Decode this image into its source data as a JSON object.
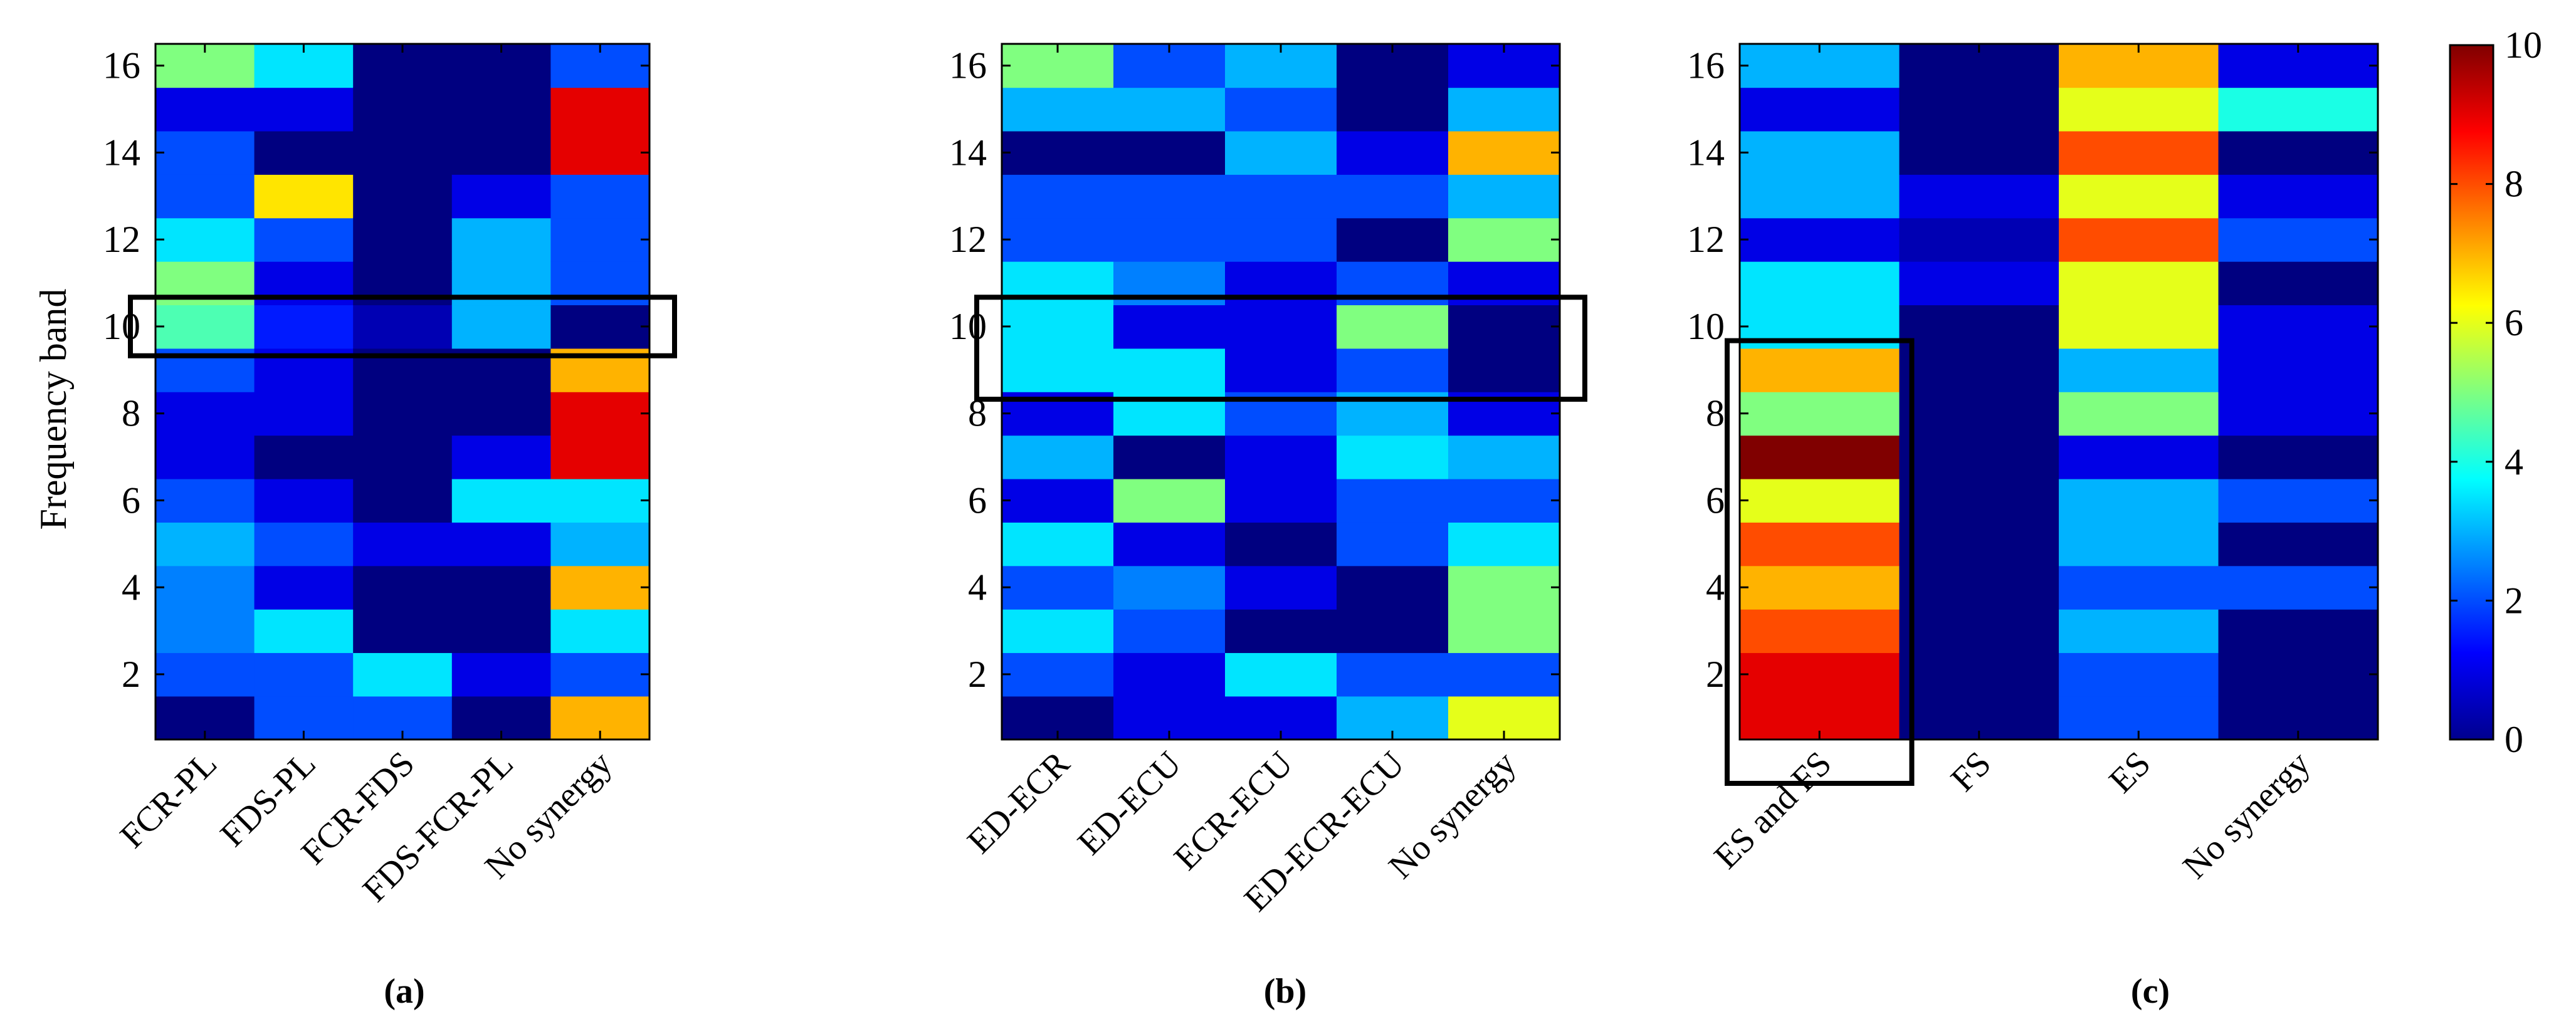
{
  "figure": {
    "ylabel": "Frequency band",
    "colorbar": {
      "min": 0,
      "max": 10,
      "ticks": [
        "0",
        "2",
        "4",
        "6",
        "8",
        "10"
      ],
      "colormap": "jet"
    }
  },
  "chart_data": [
    {
      "type": "heatmap",
      "panel_label": "(a)",
      "ylabel": "Frequency band",
      "y_range": [
        1,
        16
      ],
      "y_ticks": [
        "2",
        "4",
        "6",
        "8",
        "10",
        "12",
        "14",
        "16"
      ],
      "columns": [
        {
          "label": "FCR-PL",
          "values": [
            0,
            2,
            2.5,
            2.5,
            3,
            2,
            1,
            1,
            2,
            4.5,
            5,
            3.5,
            2,
            2,
            1,
            5
          ]
        },
        {
          "label": "FDS-PL",
          "values": [
            2,
            2,
            3.5,
            1,
            2,
            1,
            0,
            1,
            1,
            1.5,
            1,
            2,
            6.5,
            0,
            1,
            3.5
          ]
        },
        {
          "label": "FCR-FDS",
          "values": [
            2,
            3.5,
            0,
            0,
            1,
            0,
            0,
            0,
            0,
            0.5,
            0,
            0,
            0,
            0,
            0,
            0
          ]
        },
        {
          "label": "FDS-FCR-PL",
          "values": [
            0,
            1,
            0,
            0,
            1,
            3.5,
            1,
            0,
            0,
            3,
            3,
            3,
            1,
            0,
            0,
            0
          ]
        },
        {
          "label": "No synergy",
          "values": [
            7,
            2,
            3.5,
            7,
            3,
            3.5,
            9,
            9,
            7,
            0,
            2,
            2,
            2,
            9,
            9,
            2
          ]
        }
      ],
      "highlight": {
        "rows": [
          10,
          10
        ],
        "columns": "all"
      }
    },
    {
      "type": "heatmap",
      "panel_label": "(b)",
      "y_range": [
        1,
        16
      ],
      "y_ticks": [
        "2",
        "4",
        "6",
        "8",
        "10",
        "12",
        "14",
        "16"
      ],
      "columns": [
        {
          "label": "ED-ECR",
          "values": [
            0,
            2,
            3.5,
            2,
            3.5,
            1,
            3,
            1,
            3.5,
            3.5,
            3.5,
            2,
            2,
            0,
            3,
            5
          ]
        },
        {
          "label": "ED-ECU",
          "values": [
            1,
            1,
            2,
            2.5,
            1,
            5,
            0,
            3.5,
            3.5,
            1,
            2.5,
            2,
            2,
            0,
            3,
            2
          ]
        },
        {
          "label": "ECR-ECU",
          "values": [
            1,
            3.5,
            0,
            1,
            0,
            1,
            1,
            2,
            1,
            1,
            1,
            2,
            2,
            3,
            2,
            3
          ]
        },
        {
          "label": "ED-ECR-ECU",
          "values": [
            3,
            2,
            0,
            0,
            2,
            2,
            3.5,
            3,
            2,
            5,
            2,
            0,
            2,
            1,
            0,
            0
          ]
        },
        {
          "label": "No synergy",
          "values": [
            6,
            2,
            5,
            5,
            3.5,
            2,
            3,
            1,
            0,
            0,
            1,
            5,
            3,
            7,
            3,
            1
          ]
        }
      ],
      "highlight": {
        "rows": [
          9,
          10
        ],
        "columns": "all"
      }
    },
    {
      "type": "heatmap",
      "panel_label": "(c)",
      "y_range": [
        1,
        16
      ],
      "y_ticks": [
        "2",
        "4",
        "6",
        "8",
        "10",
        "12",
        "14",
        "16"
      ],
      "columns": [
        {
          "label": "ES and FS",
          "values": [
            9,
            9,
            8,
            7,
            8,
            6,
            10,
            5,
            7,
            3.5,
            3.5,
            1,
            3,
            3,
            1,
            3
          ]
        },
        {
          "label": "FS",
          "values": [
            0,
            0,
            0,
            0,
            0,
            0,
            0,
            0,
            0,
            0,
            1,
            0.5,
            1,
            0,
            0,
            0
          ]
        },
        {
          "label": "ES",
          "values": [
            2,
            2,
            3,
            2,
            3,
            3,
            1,
            5,
            3,
            6,
            6,
            8,
            6,
            8,
            6,
            7
          ]
        },
        {
          "label": "No synergy",
          "values": [
            0,
            0,
            0,
            2,
            0,
            2,
            0,
            1,
            1,
            1,
            0,
            2,
            1,
            0,
            4,
            1
          ]
        }
      ],
      "highlight": {
        "rows": [
          1,
          9
        ],
        "columns": [
          "ES and FS"
        ]
      }
    }
  ]
}
